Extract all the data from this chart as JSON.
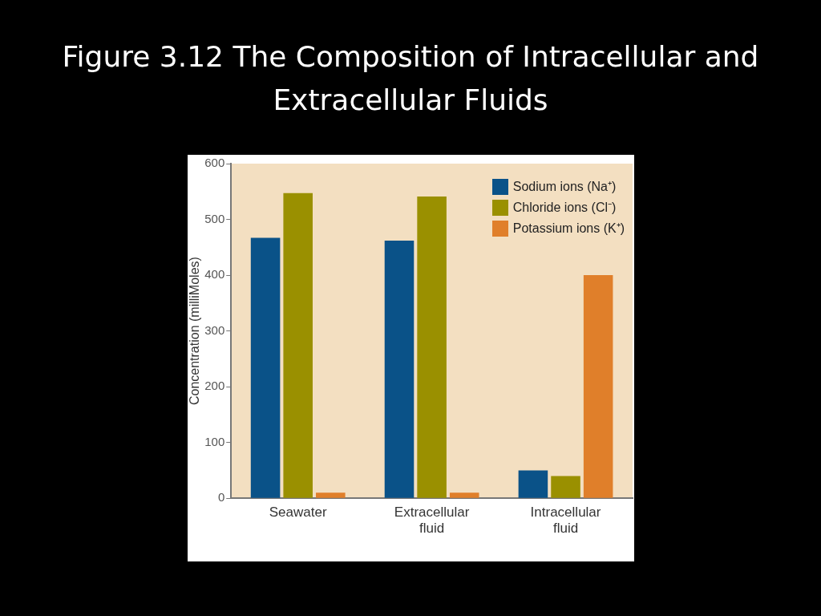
{
  "chart_data": {
    "type": "bar",
    "title": "Figure 3.12 The Composition of Intracellular and Extracellular Fluids",
    "ylabel": "Concentration (milliMoles)",
    "categories": [
      "Seawater",
      "Extracellular fluid",
      "Intracellular fluid"
    ],
    "series": [
      {
        "name": "Sodium ions (Na⁺)",
        "color": "#0a5288",
        "values": [
          467,
          462,
          50
        ]
      },
      {
        "name": "Chloride ions (Cl⁻)",
        "color": "#9a9000",
        "values": [
          547,
          541,
          40
        ]
      },
      {
        "name": "Potassium ions (K⁺)",
        "color": "#e07f2a",
        "values": [
          10,
          10,
          400
        ]
      }
    ],
    "ylim": [
      0,
      600
    ],
    "yticks": [
      0,
      100,
      200,
      300,
      400,
      500,
      600
    ],
    "grid": false,
    "legend": "top right"
  }
}
